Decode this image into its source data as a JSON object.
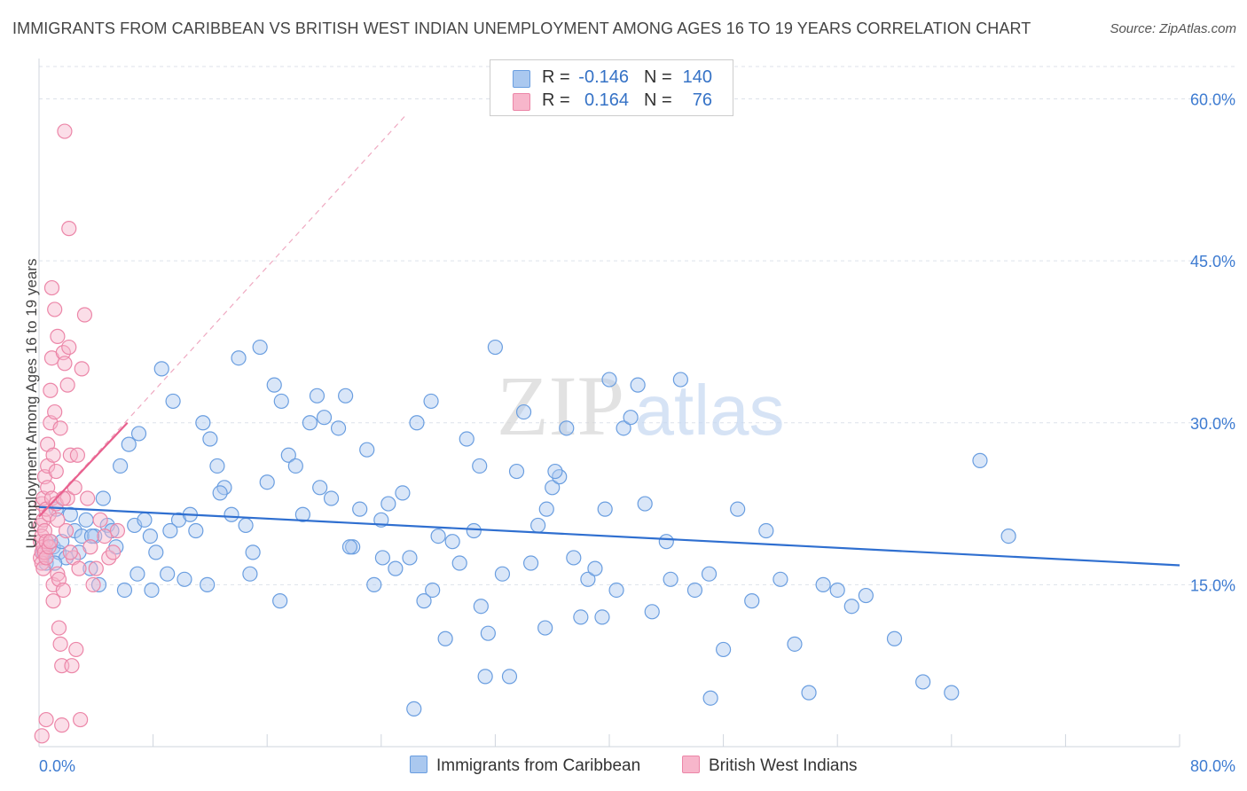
{
  "title": "IMMIGRANTS FROM CARIBBEAN VS BRITISH WEST INDIAN UNEMPLOYMENT AMONG AGES 16 TO 19 YEARS CORRELATION CHART",
  "source": "Source: ZipAtlas.com",
  "watermark": {
    "part1": "ZIP",
    "part2": "atlas"
  },
  "legend": {
    "rows": [
      {
        "r_label": "R =",
        "r_value": "-0.146",
        "n_label": "N =",
        "n_value": "140",
        "color": "#aac8ef"
      },
      {
        "r_label": "R =",
        "r_value": "0.164",
        "n_label": "N =",
        "n_value": "76",
        "color": "#f7b6cb"
      }
    ]
  },
  "bottom_legend": [
    {
      "label": "Immigrants from Caribbean",
      "color": "#aac8ef"
    },
    {
      "label": "British West Indians",
      "color": "#f7b6cb"
    }
  ],
  "colors": {
    "blue_fill": "rgba(170,200,239,0.45)",
    "blue_stroke": "#6a9ee0",
    "blue_line": "#2f6fd0",
    "pink_fill": "rgba(247,182,203,0.45)",
    "pink_stroke": "#ec86a8",
    "pink_line": "#e8608e",
    "axis_text": "#3d7bd1",
    "grid": "#dde2ea"
  },
  "chart_data": {
    "type": "scatter",
    "title": "IMMIGRANTS FROM CARIBBEAN VS BRITISH WEST INDIAN UNEMPLOYMENT AMONG AGES 16 TO 19 YEARS CORRELATION CHART",
    "xlabel": "",
    "ylabel": "Unemployment Among Ages 16 to 19 years",
    "xlim": [
      0,
      80
    ],
    "ylim": [
      0,
      63
    ],
    "x_tick_labels": [
      "0.0%",
      "80.0%"
    ],
    "y_ticks": [
      15,
      30,
      45,
      60
    ],
    "y_tick_labels": [
      "15.0%",
      "30.0%",
      "45.0%",
      "60.0%"
    ],
    "grid": true,
    "series": [
      {
        "name": "Immigrants from Caribbean",
        "trend": {
          "x": [
            0,
            80
          ],
          "y": [
            22.2,
            16.8
          ]
        },
        "x": [
          0.3,
          0.5,
          0.8,
          1.0,
          1.2,
          1.4,
          1.6,
          1.9,
          2.2,
          2.5,
          2.8,
          3.0,
          3.3,
          3.6,
          3.9,
          4.2,
          4.5,
          4.8,
          5.1,
          5.4,
          5.7,
          6.0,
          6.3,
          6.7,
          7.0,
          7.4,
          7.8,
          8.2,
          8.6,
          9.0,
          9.4,
          9.8,
          10.2,
          10.6,
          11.0,
          11.5,
          12.0,
          12.5,
          13.0,
          13.5,
          14.0,
          14.5,
          15.0,
          15.5,
          16.0,
          16.5,
          17.0,
          17.5,
          18.0,
          18.5,
          19.0,
          19.5,
          20.0,
          20.5,
          21.0,
          21.5,
          22.0,
          22.5,
          23.0,
          23.5,
          24.0,
          24.5,
          25.0,
          25.5,
          26.0,
          26.5,
          27.0,
          27.5,
          28.0,
          28.5,
          29.0,
          29.5,
          30.0,
          30.5,
          31.0,
          31.5,
          32.0,
          32.5,
          33.0,
          33.5,
          34.0,
          34.5,
          35.0,
          35.5,
          36.0,
          36.5,
          37.0,
          37.5,
          38.0,
          38.5,
          39.0,
          39.5,
          40.0,
          40.5,
          41.0,
          41.5,
          42.0,
          42.5,
          43.0,
          44.0,
          45.0,
          46.0,
          47.0,
          48.0,
          49.0,
          50.0,
          51.0,
          52.0,
          53.0,
          54.0,
          55.0,
          56.0,
          57.0,
          58.0,
          60.0,
          62.0,
          64.0,
          66.0,
          68.0,
          7.9,
          11.8,
          14.8,
          19.7,
          24.1,
          27.6,
          31.3,
          36.2,
          39.7,
          44.3,
          47.1,
          1.1,
          3.7,
          6.9,
          9.2,
          12.7,
          16.9,
          21.8,
          26.3,
          30.9,
          35.6
        ],
        "y": [
          18.0,
          17.0,
          19.0,
          18.5,
          22.0,
          18.0,
          19.0,
          17.5,
          21.5,
          20.0,
          18.0,
          19.5,
          21.0,
          16.5,
          19.5,
          15.0,
          23.0,
          20.5,
          20.0,
          18.5,
          26.0,
          14.5,
          28.0,
          20.5,
          29.0,
          21.0,
          19.5,
          18.0,
          35.0,
          16.0,
          32.0,
          21.0,
          15.5,
          21.5,
          20.0,
          30.0,
          28.5,
          26.0,
          24.0,
          21.5,
          36.0,
          20.5,
          18.0,
          37.0,
          24.5,
          33.5,
          32.0,
          27.0,
          26.0,
          21.5,
          30.0,
          32.5,
          30.5,
          23.0,
          29.5,
          32.5,
          18.5,
          22.0,
          27.5,
          15.0,
          21.0,
          22.5,
          16.5,
          23.5,
          17.5,
          30.0,
          13.5,
          32.0,
          19.5,
          10.0,
          19.0,
          17.0,
          28.5,
          20.0,
          13.0,
          10.5,
          37.0,
          16.0,
          6.5,
          25.5,
          31.0,
          17.0,
          20.5,
          11.0,
          24.0,
          25.0,
          29.5,
          17.5,
          12.0,
          15.5,
          16.5,
          12.0,
          34.0,
          14.5,
          29.5,
          30.5,
          33.5,
          22.5,
          12.5,
          19.0,
          34.0,
          14.5,
          16.0,
          9.0,
          22.0,
          13.5,
          20.0,
          15.5,
          9.5,
          5.0,
          15.0,
          14.5,
          13.0,
          14.0,
          10.0,
          6.0,
          5.0,
          26.5,
          19.5,
          14.5,
          15.0,
          16.0,
          24.0,
          17.5,
          14.5,
          6.5,
          25.5,
          22.0,
          15.5,
          4.5,
          17.0,
          19.5,
          16.0,
          20.0,
          23.5,
          13.5,
          18.5,
          3.5,
          26.0,
          22.0
        ]
      },
      {
        "name": "British West Indians",
        "trend": {
          "x": [
            0,
            6.2
          ],
          "y": [
            21.3,
            30.0
          ]
        },
        "trend_dashed": {
          "x": [
            0,
            25.8
          ],
          "y": [
            21.3,
            58.6
          ]
        },
        "x": [
          0.1,
          0.1,
          0.1,
          0.2,
          0.2,
          0.2,
          0.2,
          0.3,
          0.3,
          0.3,
          0.3,
          0.4,
          0.4,
          0.4,
          0.5,
          0.5,
          0.5,
          0.6,
          0.6,
          0.6,
          0.7,
          0.7,
          0.8,
          0.8,
          0.8,
          0.9,
          0.9,
          1.0,
          1.0,
          1.0,
          1.1,
          1.1,
          1.2,
          1.2,
          1.3,
          1.3,
          1.4,
          1.4,
          1.5,
          1.5,
          1.6,
          1.6,
          1.7,
          1.7,
          1.8,
          1.8,
          1.9,
          2.0,
          2.0,
          2.1,
          2.1,
          2.2,
          2.3,
          2.4,
          2.5,
          2.6,
          2.7,
          2.8,
          3.0,
          3.2,
          3.4,
          3.6,
          3.8,
          4.0,
          4.3,
          4.6,
          4.9,
          5.2,
          5.5,
          0.2,
          0.5,
          0.9,
          1.3,
          1.7,
          2.2,
          2.9
        ],
        "y": [
          17.5,
          19.0,
          20.5,
          18.0,
          22.5,
          17.0,
          19.5,
          18.5,
          21.0,
          23.0,
          16.5,
          18.0,
          20.0,
          25.0,
          19.0,
          22.0,
          17.5,
          24.0,
          28.0,
          26.0,
          18.5,
          21.5,
          30.0,
          33.0,
          19.0,
          23.0,
          36.0,
          27.0,
          13.5,
          15.0,
          31.0,
          40.5,
          22.5,
          25.5,
          16.0,
          38.0,
          15.5,
          11.0,
          29.5,
          9.5,
          7.5,
          2.0,
          36.5,
          14.5,
          57.0,
          35.5,
          20.0,
          23.0,
          33.5,
          37.0,
          48.0,
          27.0,
          7.5,
          17.5,
          24.0,
          9.0,
          27.0,
          16.5,
          35.0,
          40.0,
          23.0,
          18.5,
          15.0,
          16.5,
          21.0,
          19.5,
          17.5,
          18.0,
          20.0,
          1.0,
          2.5,
          42.5,
          21.0,
          23.0,
          18.0,
          2.5
        ]
      }
    ]
  }
}
